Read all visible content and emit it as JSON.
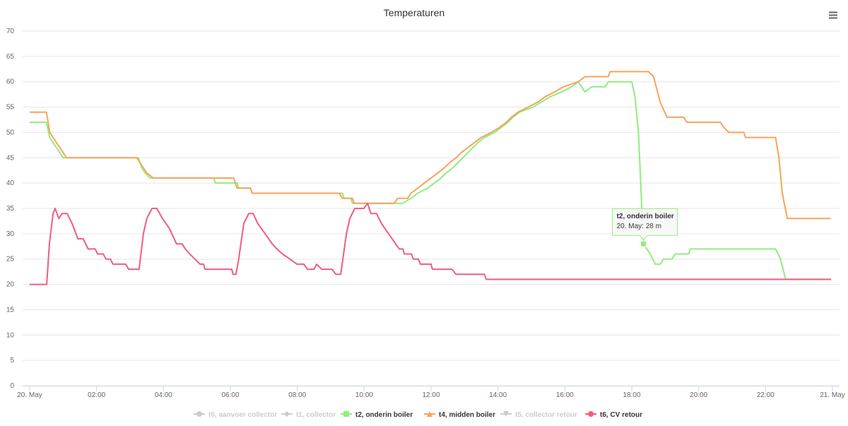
{
  "chart_data": {
    "type": "line",
    "title": "Temperaturen",
    "xlim": [
      0,
      24
    ],
    "xticks": [
      {
        "value": 0,
        "label": "20. May"
      },
      {
        "value": 2,
        "label": "02:00"
      },
      {
        "value": 4,
        "label": "04:00"
      },
      {
        "value": 6,
        "label": "06:00"
      },
      {
        "value": 8,
        "label": "08:00"
      },
      {
        "value": 10,
        "label": "10:00"
      },
      {
        "value": 12,
        "label": "12:00"
      },
      {
        "value": 14,
        "label": "14:00"
      },
      {
        "value": 16,
        "label": "16:00"
      },
      {
        "value": 18,
        "label": "18:00"
      },
      {
        "value": 20,
        "label": "20:00"
      },
      {
        "value": 22,
        "label": "22:00"
      },
      {
        "value": 24,
        "label": "21. May"
      }
    ],
    "ylim": [
      0,
      70
    ],
    "yticks": [
      0,
      5,
      10,
      15,
      20,
      25,
      30,
      35,
      40,
      45,
      50,
      55,
      60,
      65,
      70
    ],
    "grid": true,
    "legend": "bottom",
    "series": [
      {
        "name": "t0, aanvoer collector",
        "visible": false,
        "symbol": "circle"
      },
      {
        "name": "t1, collector",
        "visible": false,
        "symbol": "diamond"
      },
      {
        "name": "t2, onderin boiler",
        "visible": true,
        "symbol": "square",
        "color": "#90ed7d",
        "x": [
          0,
          0.5,
          0.6,
          0.8,
          1.0,
          3.25,
          3.35,
          3.45,
          3.6,
          5.5,
          5.55,
          6.2,
          6.25,
          6.6,
          6.65,
          9.35,
          9.4,
          9.6,
          9.65,
          11.15,
          11.4,
          11.6,
          11.9,
          12.1,
          12.3,
          12.45,
          12.65,
          12.8,
          12.95,
          13.1,
          13.25,
          13.4,
          13.6,
          13.9,
          14.1,
          14.3,
          14.45,
          14.65,
          15.05,
          15.3,
          15.55,
          15.9,
          16.2,
          16.4,
          16.6,
          16.8,
          17.2,
          17.3,
          18.0,
          18.1,
          18.2,
          18.3,
          18.35,
          18.55,
          18.7,
          18.85,
          18.95,
          19.2,
          19.3,
          19.7,
          19.75,
          22.3,
          22.45,
          22.6,
          23.95
        ],
        "values": [
          52,
          52,
          49,
          47,
          45,
          45,
          43,
          42,
          41,
          41,
          40,
          40,
          39,
          39,
          38,
          38,
          37,
          37,
          36,
          36,
          37,
          38,
          39,
          40,
          41,
          42,
          43,
          44,
          45,
          46,
          47,
          48,
          49,
          50,
          51,
          52,
          53,
          54,
          55,
          56,
          57,
          58,
          59,
          60,
          58,
          59,
          59,
          60,
          60,
          57,
          50,
          35,
          28,
          26,
          24,
          24,
          25,
          25,
          26,
          26,
          27,
          27,
          25,
          21,
          21
        ]
      },
      {
        "name": "t4, midden boiler",
        "visible": true,
        "symbol": "triangle",
        "color": "#f7a35c",
        "x": [
          0,
          0.5,
          0.6,
          0.8,
          1.0,
          1.1,
          3.2,
          3.4,
          3.5,
          3.7,
          6.1,
          6.2,
          6.6,
          6.65,
          9.25,
          9.35,
          9.65,
          9.7,
          10.9,
          11.0,
          11.3,
          11.4,
          11.6,
          11.8,
          12.0,
          12.2,
          12.4,
          12.55,
          12.75,
          12.9,
          13.1,
          13.3,
          13.5,
          13.8,
          14.05,
          14.25,
          14.4,
          14.6,
          14.9,
          15.2,
          15.4,
          15.7,
          15.95,
          16.4,
          16.6,
          17.3,
          17.35,
          18.5,
          18.65,
          18.85,
          19.05,
          19.55,
          19.65,
          20.65,
          20.75,
          20.9,
          21.35,
          21.4,
          22.3,
          22.4,
          22.5,
          22.65,
          23.95
        ],
        "values": [
          54,
          54,
          50,
          48,
          46,
          45,
          45,
          43,
          42,
          41,
          41,
          39,
          39,
          38,
          38,
          37,
          37,
          36,
          36,
          37,
          37,
          38,
          39,
          40,
          41,
          42,
          43,
          44,
          45,
          46,
          47,
          48,
          49,
          50,
          51,
          52,
          53,
          54,
          55,
          56,
          57,
          58,
          59,
          60,
          61,
          61,
          62,
          62,
          61,
          56,
          53,
          53,
          52,
          52,
          51,
          50,
          50,
          49,
          49,
          45,
          38,
          33,
          33
        ]
      },
      {
        "name": "t5, collector retour",
        "visible": false,
        "symbol": "triangle-down"
      },
      {
        "name": "t6, CV retour",
        "visible": true,
        "symbol": "circle",
        "color": "#f15c80",
        "x": [
          0,
          0.51,
          0.59,
          0.7,
          0.76,
          0.87,
          0.97,
          1.12,
          1.27,
          1.44,
          1.6,
          1.75,
          1.96,
          2.03,
          2.2,
          2.28,
          2.41,
          2.49,
          2.87,
          2.96,
          3.27,
          3.4,
          3.5,
          3.66,
          3.8,
          3.97,
          4.18,
          4.39,
          4.56,
          4.65,
          4.78,
          4.94,
          5.09,
          5.2,
          5.24,
          6.04,
          6.08,
          6.17,
          6.25,
          6.4,
          6.55,
          6.68,
          6.82,
          7.04,
          7.25,
          7.39,
          7.56,
          7.78,
          7.99,
          8.2,
          8.3,
          8.5,
          8.58,
          8.73,
          9.04,
          9.15,
          9.3,
          9.47,
          9.57,
          9.72,
          9.99,
          10.1,
          10.2,
          10.37,
          10.52,
          10.73,
          10.94,
          11.05,
          11.16,
          11.2,
          11.41,
          11.47,
          11.62,
          11.68,
          12.0,
          12.04,
          12.63,
          12.74,
          13.59,
          13.65,
          23.96
        ],
        "values": [
          20,
          20,
          28,
          34,
          35,
          33,
          34,
          34,
          32,
          29,
          29,
          27,
          27,
          26,
          26,
          25,
          25,
          24,
          24,
          23,
          23,
          30,
          33,
          35,
          35,
          33,
          31,
          28,
          28,
          27,
          26,
          25,
          24,
          24,
          23,
          23,
          22,
          22,
          25,
          32,
          34,
          34,
          32,
          30,
          28,
          27,
          26,
          25,
          24,
          24,
          23,
          23,
          24,
          23,
          23,
          22,
          22,
          30,
          33,
          35,
          35,
          36,
          34,
          34,
          32,
          30,
          28,
          27,
          27,
          26,
          26,
          25,
          25,
          24,
          24,
          23,
          23,
          22,
          22,
          21,
          21
        ]
      }
    ],
    "tooltip": {
      "title": "t2, onderin boiler",
      "text": "20. May: 28 m"
    }
  }
}
